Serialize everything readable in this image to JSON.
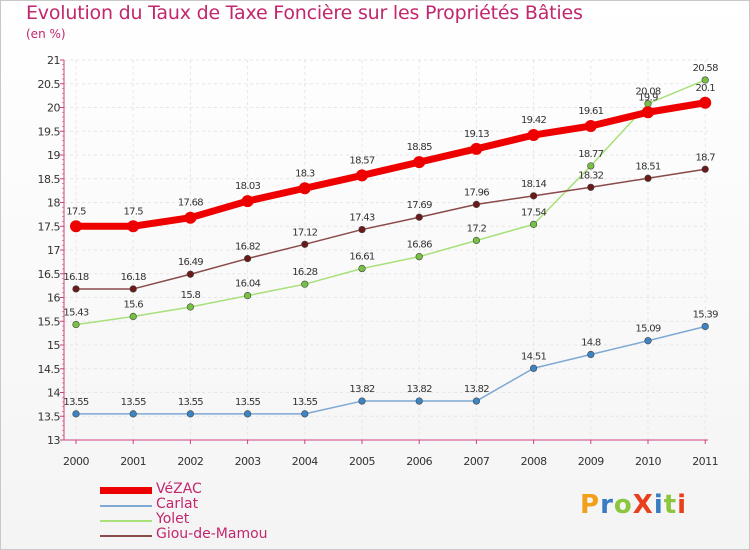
{
  "header": {
    "title": "Evolution du Taux de Taxe Foncière sur les Propriétés Bâties",
    "subtitle": "(en %)"
  },
  "logo": {
    "text": "ProXiti",
    "colors": [
      "#f2a01c",
      "#3a7cc4",
      "#8cc63e",
      "#e8401c",
      "#3a7cc4",
      "#8cc63e",
      "#e8401c"
    ]
  },
  "chart_data": {
    "type": "line",
    "title": "Evolution du Taux de Taxe Foncière sur les Propriétés Bâties",
    "ylabel": "(en %)",
    "xlabel": "",
    "x": [
      "2000",
      "2001",
      "2002",
      "2003",
      "2004",
      "2005",
      "2006",
      "2007",
      "2008",
      "2009",
      "2010",
      "2011"
    ],
    "ylim": [
      13,
      21
    ],
    "y_ticks": [
      "13",
      "13.5",
      "14",
      "14.5",
      "15",
      "15.5",
      "16",
      "16.5",
      "17",
      "17.5",
      "18",
      "18.5",
      "19",
      "19.5",
      "20",
      "20.5",
      "21"
    ],
    "grid": true,
    "legend_position": "bottom-left",
    "series": [
      {
        "name": "VéZAC",
        "color": "#ee0000",
        "marker": "#ee0000",
        "thick": true,
        "values": [
          17.5,
          17.5,
          17.68,
          18.03,
          18.3,
          18.57,
          18.85,
          19.13,
          19.42,
          19.61,
          19.9,
          20.1
        ],
        "labels": [
          "17.5",
          "17.5",
          "17.68",
          "18.03",
          "18.3",
          "18.57",
          "18.85",
          "19.13",
          "19.42",
          "19.61",
          "19.9",
          "20.1"
        ]
      },
      {
        "name": "Carlat",
        "color": "#7ea9d4",
        "marker": "#3d84c4",
        "thick": false,
        "values": [
          13.55,
          13.55,
          13.55,
          13.55,
          13.55,
          13.82,
          13.82,
          13.82,
          14.51,
          14.8,
          15.09,
          15.39
        ],
        "labels": [
          "13.55",
          "13.55",
          "13.55",
          "13.55",
          "13.55",
          "13.82",
          "13.82",
          "13.82",
          "14.51",
          "14.8",
          "15.09",
          "15.39"
        ]
      },
      {
        "name": "Yolet",
        "color": "#a8e07a",
        "marker": "#76c043",
        "thick": false,
        "values": [
          15.43,
          15.6,
          15.8,
          16.04,
          16.28,
          16.61,
          16.86,
          17.2,
          17.54,
          18.77,
          20.08,
          20.58
        ],
        "labels": [
          "15.43",
          "15.6",
          "15.8",
          "16.04",
          "16.28",
          "16.61",
          "16.86",
          "17.2",
          "17.54",
          "18.77",
          "20.08",
          "20.58"
        ]
      },
      {
        "name": "Giou-de-Mamou",
        "color": "#8a4a4a",
        "marker": "#6b1a1a",
        "thick": false,
        "values": [
          16.18,
          16.18,
          16.49,
          16.82,
          17.12,
          17.43,
          17.69,
          17.96,
          18.14,
          18.32,
          18.51,
          18.7
        ],
        "labels": [
          "16.18",
          "16.18",
          "16.49",
          "16.82",
          "17.12",
          "17.43",
          "17.69",
          "17.96",
          "18.14",
          "18.32",
          "18.51",
          "18.7"
        ]
      }
    ]
  }
}
